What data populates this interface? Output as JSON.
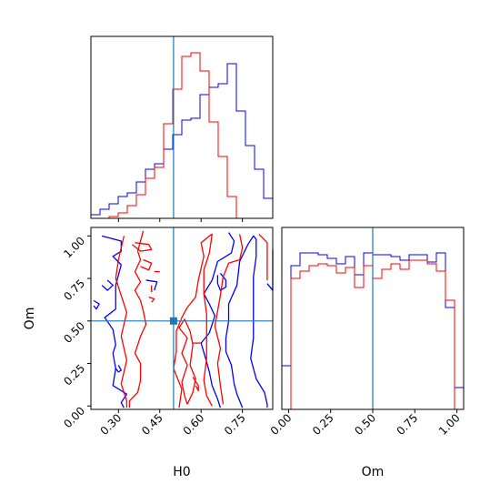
{
  "chart_data": [
    {
      "type": "histogram",
      "panel": "top-left",
      "parameter": "H0",
      "xlim": [
        0.2,
        0.86
      ],
      "x_ticks": [
        0.3,
        0.45,
        0.6,
        0.75
      ],
      "truth_line": 0.5,
      "truth_color": "#1f77b4",
      "series": [
        {
          "color": "#0000ff",
          "bin_edges": [
            0.2,
            0.233,
            0.266,
            0.299,
            0.332,
            0.365,
            0.398,
            0.431,
            0.464,
            0.497,
            0.53,
            0.563,
            0.596,
            0.629,
            0.662,
            0.695,
            0.728,
            0.761,
            0.794,
            0.827,
            0.86
          ],
          "counts": [
            0.02,
            0.05,
            0.08,
            0.12,
            0.14,
            0.2,
            0.27,
            0.3,
            0.38,
            0.46,
            0.54,
            0.55,
            0.68,
            0.72,
            0.74,
            0.85,
            0.59,
            0.4,
            0.27,
            0.11
          ]
        },
        {
          "color": "#ff0000",
          "bin_edges": [
            0.2,
            0.233,
            0.266,
            0.299,
            0.332,
            0.365,
            0.398,
            0.431,
            0.464,
            0.497,
            0.53,
            0.563,
            0.596,
            0.629,
            0.662,
            0.695,
            0.728,
            0.761,
            0.794,
            0.827,
            0.86
          ],
          "counts": [
            0,
            0,
            0.01,
            0.03,
            0.07,
            0.13,
            0.22,
            0.28,
            0.52,
            0.71,
            0.89,
            0.91,
            0.81,
            0.53,
            0.34,
            0.12,
            0,
            0,
            0,
            0
          ]
        }
      ]
    },
    {
      "type": "contour",
      "panel": "bottom-left",
      "xlabel": "H0",
      "ylabel": "Om",
      "xlim": [
        0.2,
        0.86
      ],
      "ylim": [
        -0.02,
        1.05
      ],
      "x_ticks": [
        0.3,
        0.45,
        0.6,
        0.75
      ],
      "y_ticks": [
        0.0,
        0.25,
        0.5,
        0.75,
        1.0
      ],
      "truth_point": [
        0.5,
        0.5
      ],
      "truth_color": "#1f77b4",
      "series": [
        {
          "color": "#0000ff",
          "contours": [
            [
              [
                0.21,
                0.62
              ],
              [
                0.23,
                0.6
              ],
              [
                0.22,
                0.57
              ],
              [
                0.21,
                0.59
              ]
            ],
            [
              [
                0.26,
                0.74
              ],
              [
                0.28,
                0.71
              ],
              [
                0.26,
                0.68
              ],
              [
                0.24,
                0.71
              ]
            ],
            [
              [
                0.24,
                1.0
              ],
              [
                0.31,
                0.97
              ],
              [
                0.31,
                0.91
              ],
              [
                0.28,
                0.88
              ],
              [
                0.31,
                0.83
              ],
              [
                0.29,
                0.71
              ],
              [
                0.29,
                0.57
              ],
              [
                0.25,
                0.52
              ],
              [
                0.28,
                0.45
              ],
              [
                0.29,
                0.36
              ],
              [
                0.28,
                0.31
              ],
              [
                0.29,
                0.22
              ],
              [
                0.28,
                0.12
              ],
              [
                0.33,
                0.07
              ],
              [
                0.31,
                0.02
              ],
              [
                0.32,
                -0.01
              ]
            ],
            [
              [
                0.4,
                0.74
              ],
              [
                0.44,
                0.73
              ],
              [
                0.43,
                0.68
              ]
            ],
            [
              [
                0.29,
                0.22
              ],
              [
                0.3,
                0.2
              ],
              [
                0.31,
                0.21
              ],
              [
                0.3,
                0.24
              ]
            ],
            [
              [
                0.67,
                0.78
              ],
              [
                0.69,
                0.74
              ],
              [
                0.69,
                0.7
              ],
              [
                0.67,
                0.68
              ],
              [
                0.66,
                0.72
              ],
              [
                0.66,
                0.77
              ]
            ],
            [
              [
                0.67,
                -0.01
              ],
              [
                0.66,
                0.04
              ],
              [
                0.64,
                0.12
              ],
              [
                0.63,
                0.2
              ],
              [
                0.62,
                0.26
              ],
              [
                0.6,
                0.37
              ],
              [
                0.63,
                0.43
              ],
              [
                0.65,
                0.53
              ],
              [
                0.63,
                0.6
              ],
              [
                0.61,
                0.66
              ],
              [
                0.64,
                0.74
              ],
              [
                0.66,
                0.85
              ],
              [
                0.71,
                0.9
              ],
              [
                0.72,
                0.97
              ],
              [
                0.7,
                1.02
              ]
            ],
            [
              [
                0.75,
                -0.01
              ],
              [
                0.73,
                0.07
              ],
              [
                0.72,
                0.13
              ],
              [
                0.71,
                0.24
              ],
              [
                0.69,
                0.32
              ],
              [
                0.69,
                0.4
              ],
              [
                0.7,
                0.5
              ],
              [
                0.7,
                0.6
              ],
              [
                0.73,
                0.71
              ],
              [
                0.74,
                0.85
              ],
              [
                0.77,
                0.95
              ],
              [
                0.79,
                1.0
              ],
              [
                0.8,
                0.98
              ],
              [
                0.8,
                0.88
              ],
              [
                0.79,
                0.76
              ],
              [
                0.79,
                0.63
              ],
              [
                0.79,
                0.51
              ],
              [
                0.79,
                0.4
              ],
              [
                0.78,
                0.28
              ],
              [
                0.8,
                0.16
              ],
              [
                0.83,
                0.08
              ],
              [
                0.84,
                0.01
              ],
              [
                0.84,
                -0.01
              ]
            ],
            [
              [
                0.84,
                0.72
              ],
              [
                0.86,
                0.68
              ],
              [
                0.86,
                0.92
              ]
            ]
          ]
        },
        {
          "color": "#ff0000",
          "contours": [
            [
              [
                0.36,
                0.96
              ],
              [
                0.41,
                0.95
              ],
              [
                0.42,
                0.92
              ],
              [
                0.38,
                0.91
              ],
              [
                0.35,
                0.95
              ]
            ],
            [
              [
                0.39,
                0.86
              ],
              [
                0.42,
                0.84
              ],
              [
                0.41,
                0.8
              ],
              [
                0.38,
                0.82
              ]
            ],
            [
              [
                0.43,
                0.79
              ],
              [
                0.45,
                0.79
              ]
            ],
            [
              [
                0.41,
                0.64
              ],
              [
                0.43,
                0.63
              ],
              [
                0.42,
                0.61
              ]
            ],
            [
              [
                0.42,
                0.71
              ],
              [
                0.42,
                0.67
              ]
            ],
            [
              [
                0.34,
                -0.01
              ],
              [
                0.34,
                0.03
              ],
              [
                0.37,
                0.08
              ],
              [
                0.38,
                0.15
              ],
              [
                0.38,
                0.25
              ],
              [
                0.36,
                0.31
              ],
              [
                0.38,
                0.41
              ],
              [
                0.4,
                0.48
              ],
              [
                0.39,
                0.56
              ],
              [
                0.38,
                0.62
              ],
              [
                0.36,
                0.68
              ],
              [
                0.38,
                0.73
              ],
              [
                0.36,
                0.79
              ],
              [
                0.38,
                0.86
              ],
              [
                0.37,
                0.91
              ],
              [
                0.38,
                0.97
              ],
              [
                0.39,
                1.03
              ]
            ],
            [
              [
                0.32,
                1.0
              ],
              [
                0.3,
                0.86
              ],
              [
                0.29,
                0.75
              ],
              [
                0.31,
                0.65
              ],
              [
                0.33,
                0.55
              ],
              [
                0.31,
                0.41
              ],
              [
                0.33,
                0.27
              ],
              [
                0.31,
                0.13
              ],
              [
                0.33,
                0.03
              ],
              [
                0.33,
                -0.01
              ]
            ],
            [
              [
                0.55,
                0.01
              ],
              [
                0.54,
                0.06
              ],
              [
                0.53,
                0.14
              ],
              [
                0.55,
                0.24
              ],
              [
                0.53,
                0.31
              ],
              [
                0.55,
                0.4
              ],
              [
                0.52,
                0.46
              ],
              [
                0.54,
                0.51
              ],
              [
                0.56,
                0.44
              ],
              [
                0.57,
                0.36
              ],
              [
                0.56,
                0.24
              ],
              [
                0.58,
                0.16
              ],
              [
                0.57,
                0.08
              ],
              [
                0.55,
                0.01
              ]
            ],
            [
              [
                0.57,
                0.17
              ],
              [
                0.59,
                0.12
              ],
              [
                0.59,
                0.09
              ],
              [
                0.58,
                0.12
              ]
            ],
            [
              [
                0.57,
                0.37
              ],
              [
                0.6,
                0.37
              ]
            ],
            [
              [
                0.52,
                -0.01
              ],
              [
                0.53,
                0.1
              ],
              [
                0.5,
                0.22
              ],
              [
                0.51,
                0.32
              ],
              [
                0.51,
                0.44
              ],
              [
                0.53,
                0.52
              ],
              [
                0.55,
                0.58
              ],
              [
                0.58,
                0.64
              ],
              [
                0.59,
                0.74
              ],
              [
                0.61,
                0.88
              ],
              [
                0.6,
                0.96
              ],
              [
                0.63,
                1.0
              ],
              [
                0.64,
                1.01
              ],
              [
                0.63,
                0.9
              ],
              [
                0.61,
                0.8
              ],
              [
                0.61,
                0.66
              ],
              [
                0.62,
                0.54
              ],
              [
                0.62,
                0.4
              ],
              [
                0.62,
                0.28
              ],
              [
                0.61,
                0.15
              ],
              [
                0.62,
                0.06
              ],
              [
                0.64,
                0.0
              ]
            ],
            [
              [
                0.68,
                0.01
              ],
              [
                0.67,
                0.12
              ],
              [
                0.66,
                0.25
              ],
              [
                0.67,
                0.34
              ],
              [
                0.65,
                0.47
              ],
              [
                0.66,
                0.56
              ],
              [
                0.67,
                0.65
              ],
              [
                0.68,
                0.76
              ],
              [
                0.7,
                0.84
              ],
              [
                0.74,
                0.86
              ],
              [
                0.75,
                0.93
              ],
              [
                0.74,
                1.01
              ]
            ],
            [
              [
                0.81,
                1.01
              ],
              [
                0.84,
                0.96
              ],
              [
                0.84,
                0.84
              ],
              [
                0.84,
                0.74
              ]
            ]
          ]
        }
      ]
    },
    {
      "type": "histogram",
      "panel": "bottom-right",
      "parameter": "Om",
      "xlabel": "Om",
      "xlim": [
        -0.04,
        1.04
      ],
      "x_ticks": [
        0.0,
        0.25,
        0.5,
        0.75,
        1.0
      ],
      "truth_line": 0.5,
      "truth_color": "#1f77b4",
      "series": [
        {
          "color": "#0000ff",
          "bin_edges": [
            -0.04,
            0.014,
            0.068,
            0.122,
            0.176,
            0.23,
            0.284,
            0.338,
            0.392,
            0.446,
            0.5,
            0.554,
            0.608,
            0.662,
            0.716,
            0.77,
            0.824,
            0.878,
            0.932,
            0.986,
            1.04
          ],
          "counts": [
            0.24,
            0.79,
            0.86,
            0.86,
            0.85,
            0.83,
            0.8,
            0.84,
            0.74,
            0.86,
            0.85,
            0.85,
            0.84,
            0.82,
            0.85,
            0.85,
            0.81,
            0.86,
            0.56,
            0.12
          ]
        },
        {
          "color": "#ff0000",
          "bin_edges": [
            -0.04,
            0.014,
            0.068,
            0.122,
            0.176,
            0.23,
            0.284,
            0.338,
            0.392,
            0.446,
            0.5,
            0.554,
            0.608,
            0.662,
            0.716,
            0.77,
            0.824,
            0.878,
            0.932,
            0.986,
            1.04
          ],
          "counts": [
            0,
            0.72,
            0.76,
            0.79,
            0.8,
            0.79,
            0.75,
            0.78,
            0.67,
            0.79,
            0.72,
            0.77,
            0.8,
            0.77,
            0.82,
            0.82,
            0.8,
            0.76,
            0.6,
            0
          ]
        }
      ]
    }
  ]
}
